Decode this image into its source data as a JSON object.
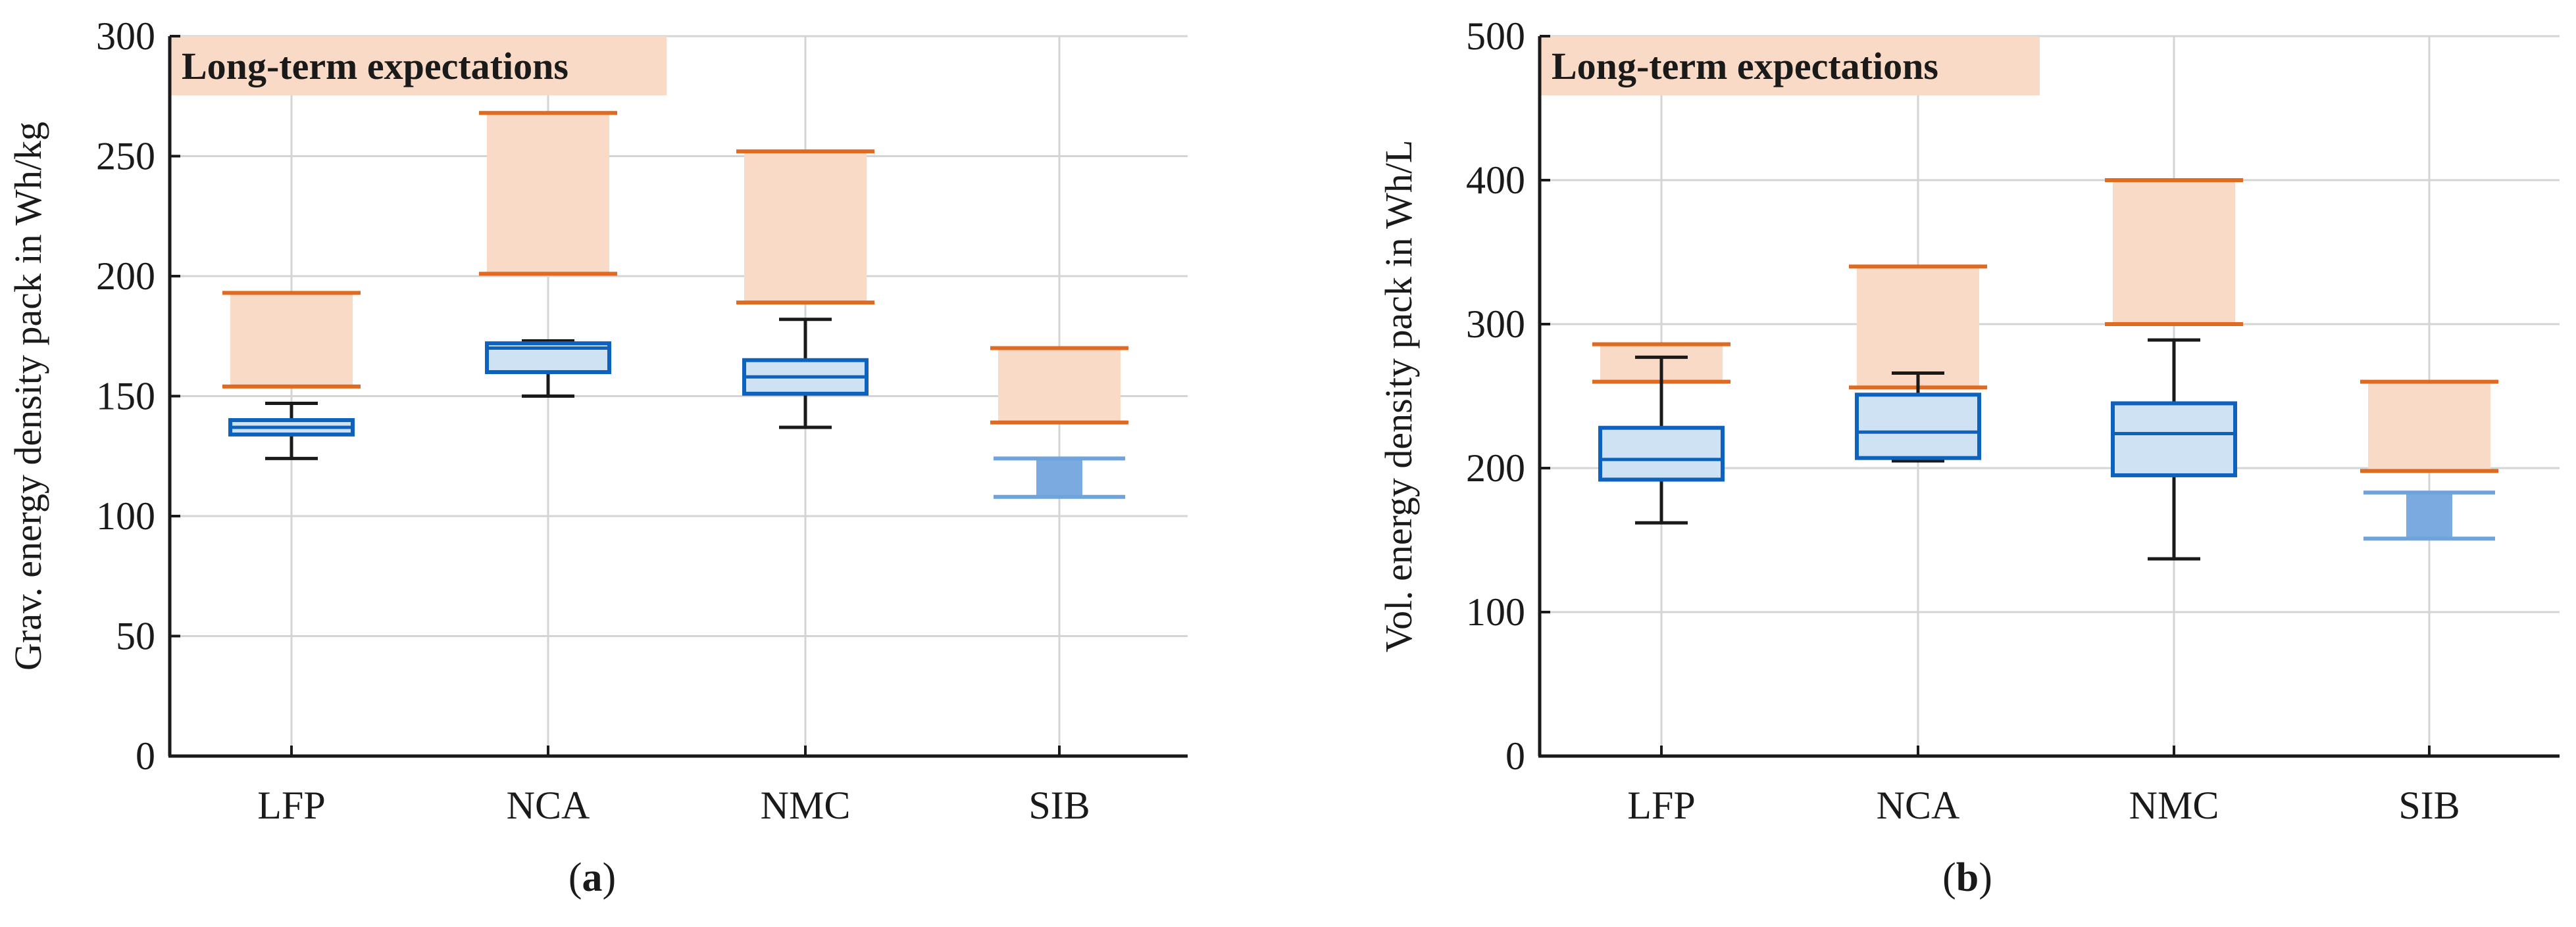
{
  "colors": {
    "box_blue": "#0d62bd",
    "box_fill": "#cfe2f3",
    "sib_blue": "#6fa3dc",
    "sib_fill": "#7aaadf",
    "target_orange": "#e06a1f",
    "target_fill": "#f8dac6",
    "whisker": "#1a1a1a",
    "grid": "#d4d4d4",
    "axis": "#1a1a1a"
  },
  "chart_data": [
    {
      "id": "a",
      "type": "box",
      "panel_label": "a",
      "ylabel": "Grav. energy density pack in Wh/kg",
      "ylim": [
        0,
        300
      ],
      "yticks": [
        "0",
        "50",
        "100",
        "150",
        "200",
        "250",
        "300"
      ],
      "ytick_values": [
        0,
        50,
        100,
        150,
        200,
        250,
        300
      ],
      "categories": [
        "LFP",
        "NCA",
        "NMC",
        "SIB"
      ],
      "annotation": "Long-term expectations",
      "grid": true,
      "boxes": [
        {
          "category": "LFP",
          "min": 124,
          "q1": 134,
          "median": 137,
          "q3": 140,
          "max": 147
        },
        {
          "category": "NCA",
          "min": 150,
          "q1": 160,
          "median": 170,
          "q3": 172,
          "max": 173
        },
        {
          "category": "NMC",
          "min": 137,
          "q1": 151,
          "median": 158,
          "q3": 165,
          "max": 182
        },
        null
      ],
      "sib_range": {
        "low": 108,
        "high": 124
      },
      "expectations": [
        {
          "category": "LFP",
          "low": 154,
          "high": 193
        },
        {
          "category": "NCA",
          "low": 201,
          "high": 268
        },
        {
          "category": "NMC",
          "low": 189,
          "high": 252
        },
        {
          "category": "SIB",
          "low": 139,
          "high": 170
        }
      ]
    },
    {
      "id": "b",
      "type": "box",
      "panel_label": "b",
      "ylabel": "Vol. energy density pack in Wh/L",
      "ylim": [
        0,
        500
      ],
      "yticks": [
        "0",
        "100",
        "200",
        "300",
        "400",
        "500"
      ],
      "ytick_values": [
        0,
        100,
        200,
        300,
        400,
        500
      ],
      "categories": [
        "LFP",
        "NCA",
        "NMC",
        "SIB"
      ],
      "annotation": "Long-term expectations",
      "grid": true,
      "boxes": [
        {
          "category": "LFP",
          "min": 162,
          "q1": 192,
          "median": 206,
          "q3": 228,
          "max": 277
        },
        {
          "category": "NCA",
          "min": 205,
          "q1": 207,
          "median": 225,
          "q3": 251,
          "max": 266
        },
        {
          "category": "NMC",
          "min": 137,
          "q1": 195,
          "median": 224,
          "q3": 245,
          "max": 289
        },
        null
      ],
      "sib_range": {
        "low": 151,
        "high": 183
      },
      "expectations": [
        {
          "category": "LFP",
          "low": 260,
          "high": 286
        },
        {
          "category": "NCA",
          "low": 256,
          "high": 340
        },
        {
          "category": "NMC",
          "low": 300,
          "high": 400
        },
        {
          "category": "SIB",
          "low": 198,
          "high": 260
        }
      ]
    }
  ]
}
